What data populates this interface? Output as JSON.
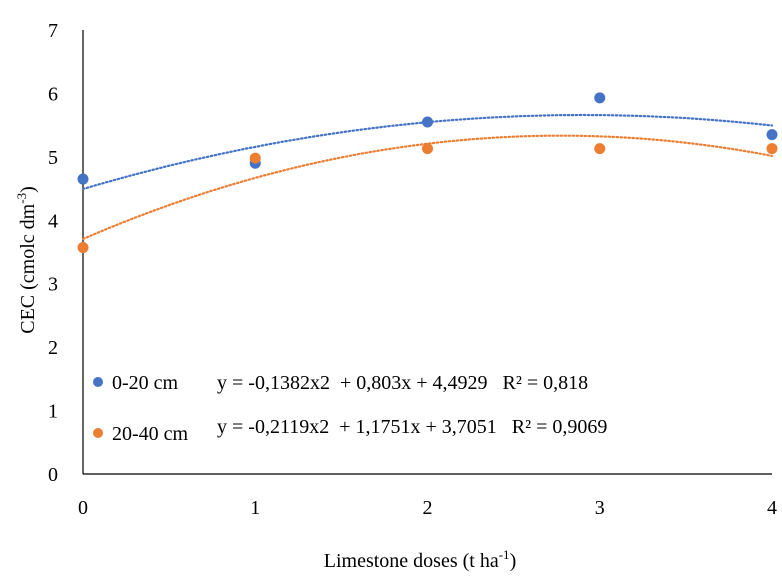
{
  "chart_data": {
    "type": "scatter",
    "xlabel": "Limestone doses (t ha",
    "xlabel_sup": "-1",
    "xlabel_end": ")",
    "ylabel": "CEC (cmolc dm",
    "ylabel_sup": "-3",
    "ylabel_end": ")",
    "xlim": [
      0,
      4
    ],
    "ylim": [
      0,
      7
    ],
    "x_ticks": [
      "0",
      "1",
      "2",
      "3",
      "4"
    ],
    "y_ticks": [
      "0",
      "1",
      "2",
      "3",
      "4",
      "5",
      "6",
      "7"
    ],
    "grid": false,
    "legend_position": "bottom-left",
    "series": [
      {
        "name": "0-20 cm",
        "color": "#4472C4",
        "x": [
          0,
          1,
          2,
          3,
          4
        ],
        "y": [
          4.65,
          4.9,
          5.55,
          5.93,
          5.35
        ],
        "trendline": {
          "type": "polynomial",
          "coefficients": [
            -0.1382,
            0.803,
            4.4929
          ]
        },
        "equation": "y = -0,1382x2  + 0,803x + 4,4929   R² = 0,818"
      },
      {
        "name": "20-40 cm",
        "color": "#ED7D31",
        "x": [
          0,
          1,
          2,
          3,
          4
        ],
        "y": [
          3.57,
          4.98,
          5.13,
          5.13,
          5.13
        ],
        "trendline": {
          "type": "polynomial",
          "coefficients": [
            -0.2119,
            1.1751,
            3.7051
          ]
        },
        "equation": "y = -0,2119x2  + 1,1751x + 3,7051   R² = 0,9069"
      }
    ]
  }
}
